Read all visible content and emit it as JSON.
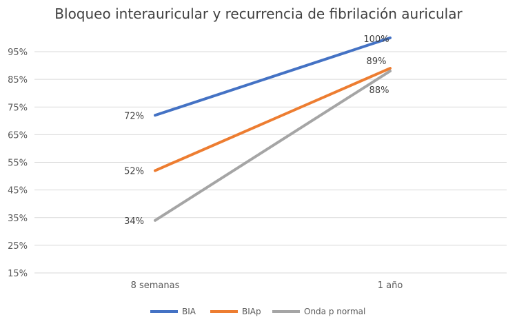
{
  "chart_data": {
    "type": "line",
    "title": "Bloqueo interauricular y recurrencia de fibrilación auricular",
    "categories": [
      "8 semanas",
      "1 año"
    ],
    "series": [
      {
        "name": "BIA",
        "values": [
          72,
          100
        ],
        "labels": [
          "72%",
          "100%"
        ],
        "color": "#4472C4"
      },
      {
        "name": "BIAp",
        "values": [
          52,
          89
        ],
        "labels": [
          "52%",
          "89%"
        ],
        "color": "#ED7D31"
      },
      {
        "name": "Onda p normal",
        "values": [
          34,
          88
        ],
        "labels": [
          "34%",
          "88%"
        ],
        "color": "#A5A5A5"
      }
    ],
    "yticks": [
      "15%",
      "25%",
      "35%",
      "45%",
      "55%",
      "65%",
      "75%",
      "85%",
      "95%"
    ],
    "ytick_values": [
      15,
      25,
      35,
      45,
      55,
      65,
      75,
      85,
      95
    ],
    "ylim": [
      15,
      100
    ],
    "grid": true,
    "legend": "bottom"
  }
}
